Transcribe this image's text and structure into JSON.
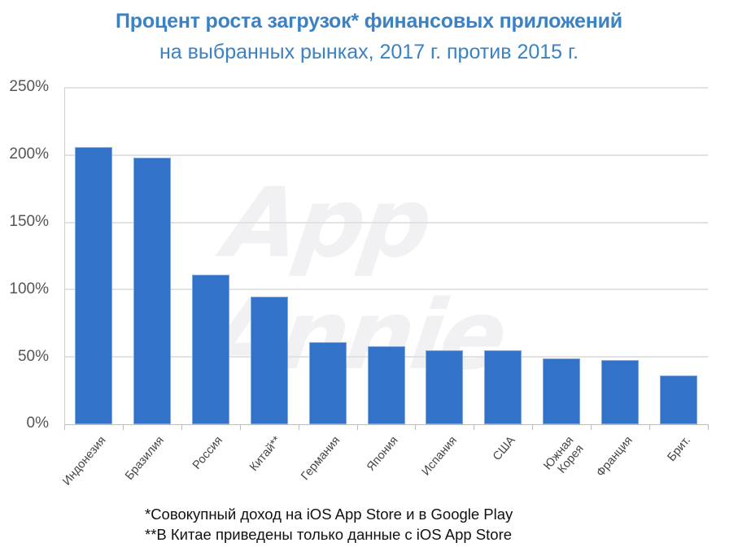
{
  "header": {
    "title": "Процент роста загрузок* финансовых приложений",
    "subtitle": "на выбранных рынках, 2017 г. против 2015 г."
  },
  "watermark": "App Annie",
  "colors": {
    "bar": "#3272c8",
    "title": "#3b82c4",
    "grid": "#e2e2e2"
  },
  "yaxis": {
    "ticks": [
      "250%",
      "200%",
      "150%",
      "100%",
      "50%",
      "0%"
    ]
  },
  "xaxis": {
    "labels": [
      "Индонезия",
      "Бразилия",
      "Россия",
      "Китай**",
      "Германия",
      "Япония",
      "Испания",
      "США",
      "Южная\nКорея",
      "Франция",
      "Брит."
    ]
  },
  "footnotes": {
    "note1": "*Совокупный доход на iOS App Store и в Google Play",
    "note2": "**В Китае приведены только данные с iOS App Store"
  },
  "chart_data": {
    "type": "bar",
    "title": "Процент роста загрузок* финансовых приложений на выбранных рынках, 2017 г. против 2015 г.",
    "xlabel": "",
    "ylabel": "",
    "categories": [
      "Индонезия",
      "Бразилия",
      "Россия",
      "Китай**",
      "Германия",
      "Япония",
      "Испания",
      "США",
      "Южная Корея",
      "Франция",
      "Брит."
    ],
    "values": [
      206,
      198,
      111,
      95,
      61,
      58,
      55,
      55,
      49,
      48,
      36
    ],
    "unit": "%",
    "ylim": [
      0,
      250
    ],
    "yticks": [
      0,
      50,
      100,
      150,
      200,
      250
    ],
    "grid": true,
    "legend": null,
    "footnotes": [
      "*Совокупный доход на iOS App Store и в Google Play",
      "**В Китае приведены только данные с iOS App Store"
    ]
  }
}
